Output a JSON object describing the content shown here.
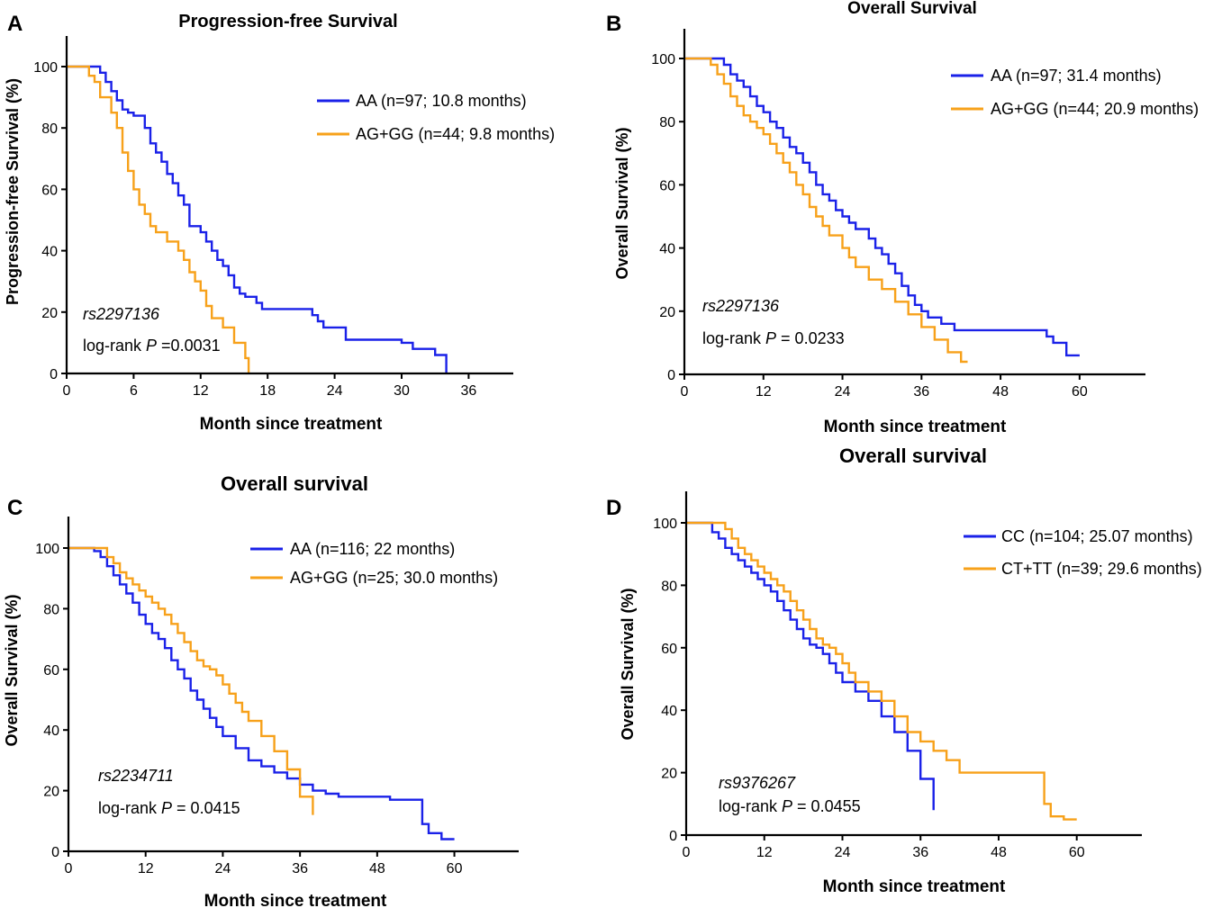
{
  "colors": {
    "blue": "#1a21e8",
    "orange": "#f7a11a"
  },
  "chart_data": [
    {
      "type": "line",
      "panel": "A",
      "title": "Progression-free Survival",
      "xlabel": "Month since treatment",
      "ylabel": "Progression-free Survival (%)",
      "xlim": [
        0,
        40
      ],
      "ylim": [
        0,
        100
      ],
      "xticks": [
        0,
        6,
        12,
        18,
        24,
        30,
        36
      ],
      "yticks": [
        0,
        20,
        40,
        60,
        80,
        100
      ],
      "snp": "rs2297136",
      "stat_prefix": "log-rank ",
      "stat_p": "P",
      "stat_value": " =0.0031",
      "series": [
        {
          "name": "AA (n=97; 10.8 months)",
          "color": "blue",
          "x": [
            0,
            3,
            3.5,
            4,
            4.5,
            5,
            5.5,
            6,
            7,
            7.5,
            8,
            8.5,
            9,
            9.5,
            10,
            10.5,
            11,
            12,
            12.5,
            13,
            13.5,
            14,
            14.5,
            15,
            15.5,
            16,
            17,
            17.5,
            22,
            22.5,
            23,
            25,
            30,
            31,
            33,
            34
          ],
          "y": [
            100,
            98,
            95,
            92,
            89,
            86,
            85,
            84,
            80,
            75,
            72,
            69,
            65,
            62,
            58,
            55,
            48,
            46,
            43,
            40,
            37,
            35,
            32,
            28,
            26,
            25,
            23,
            21,
            19,
            17,
            15,
            11,
            10,
            8,
            6,
            0
          ]
        },
        {
          "name": "AG+GG (n=44; 9.8 months)",
          "color": "orange",
          "x": [
            0,
            2,
            2.5,
            3,
            4,
            4.5,
            5,
            5.5,
            6,
            6.5,
            7,
            7.5,
            8,
            9,
            10,
            10.5,
            11,
            11.5,
            12,
            12.5,
            13,
            14,
            15,
            16,
            16.3
          ],
          "y": [
            100,
            97,
            95,
            90,
            85,
            80,
            72,
            66,
            60,
            55,
            52,
            48,
            46,
            43,
            40,
            37,
            33,
            30,
            27,
            22,
            18,
            15,
            10,
            5,
            0
          ]
        }
      ]
    },
    {
      "type": "line",
      "panel": "B",
      "title": "Overall Survival",
      "xlabel": "Month since treatment",
      "ylabel": "Overall Survival (%)",
      "xlim": [
        0,
        70
      ],
      "ylim": [
        0,
        100
      ],
      "xticks": [
        0,
        12,
        24,
        36,
        48,
        60
      ],
      "yticks": [
        0,
        20,
        40,
        60,
        80,
        100
      ],
      "snp": "rs2297136",
      "stat_prefix": "log-rank ",
      "stat_p": "P",
      "stat_value": " = 0.0233",
      "series": [
        {
          "name": "AA (n=97; 31.4 months)",
          "color": "blue",
          "x": [
            0,
            6,
            7,
            8,
            9,
            10,
            11,
            12,
            13,
            14,
            15,
            16,
            17,
            18,
            19,
            20,
            21,
            22,
            23,
            24,
            25,
            26,
            28,
            29,
            30,
            31,
            32,
            33,
            34,
            35,
            36,
            37,
            39,
            41,
            55,
            56,
            58,
            60
          ],
          "y": [
            100,
            98,
            95,
            93,
            91,
            88,
            85,
            83,
            80,
            78,
            75,
            72,
            70,
            67,
            64,
            60,
            57,
            55,
            52,
            50,
            48,
            46,
            43,
            40,
            38,
            35,
            32,
            28,
            25,
            22,
            20,
            18,
            16,
            14,
            12,
            10,
            6,
            6
          ]
        },
        {
          "name": "AG+GG (n=44; 20.9 months)",
          "color": "orange",
          "x": [
            0,
            4,
            5,
            6,
            7,
            8,
            9,
            10,
            11,
            12,
            13,
            14,
            15,
            16,
            17,
            18,
            19,
            20,
            21,
            22,
            24,
            25,
            26,
            28,
            30,
            32,
            34,
            36,
            38,
            40,
            42,
            43
          ],
          "y": [
            100,
            98,
            95,
            92,
            88,
            85,
            82,
            80,
            78,
            76,
            73,
            70,
            67,
            64,
            60,
            57,
            53,
            50,
            47,
            44,
            40,
            37,
            34,
            30,
            27,
            23,
            19,
            15,
            11,
            7,
            4,
            4
          ]
        }
      ]
    },
    {
      "type": "line",
      "panel": "C",
      "title": "Overall survival",
      "xlabel": "Month since treatment",
      "ylabel": "Overall Survival (%)",
      "xlim": [
        0,
        70
      ],
      "ylim": [
        0,
        100
      ],
      "xticks": [
        0,
        12,
        24,
        36,
        48,
        60
      ],
      "yticks": [
        0,
        20,
        40,
        60,
        80,
        100
      ],
      "snp": "rs2234711",
      "stat_prefix": "log-rank ",
      "stat_p": "P",
      "stat_value": " = 0.0415",
      "series": [
        {
          "name": "AA (n=116; 22 months)",
          "color": "blue",
          "x": [
            0,
            4,
            5,
            6,
            7,
            8,
            9,
            10,
            11,
            12,
            13,
            14,
            15,
            16,
            17,
            18,
            19,
            20,
            21,
            22,
            23,
            24,
            26,
            28,
            30,
            32,
            34,
            36,
            38,
            40,
            42,
            44,
            46,
            48,
            50,
            52,
            54,
            55,
            56,
            58,
            60
          ],
          "y": [
            100,
            99,
            97,
            94,
            91,
            88,
            85,
            82,
            78,
            75,
            72,
            70,
            67,
            63,
            60,
            57,
            53,
            50,
            47,
            44,
            41,
            38,
            34,
            30,
            28,
            26,
            24,
            22,
            20,
            19,
            18,
            18,
            18,
            18,
            17,
            17,
            17,
            9,
            6,
            4,
            4
          ]
        },
        {
          "name": "AG+GG (n=25; 30.0 months)",
          "color": "orange",
          "x": [
            0,
            6,
            7,
            8,
            9,
            10,
            11,
            12,
            13,
            14,
            15,
            16,
            17,
            18,
            19,
            20,
            21,
            22,
            23,
            24,
            25,
            26,
            27,
            28,
            30,
            32,
            34,
            36,
            38
          ],
          "y": [
            100,
            97,
            95,
            92,
            90,
            88,
            86,
            84,
            82,
            80,
            78,
            75,
            72,
            69,
            66,
            63,
            61,
            60,
            58,
            55,
            52,
            49,
            46,
            43,
            38,
            33,
            27,
            18,
            12
          ]
        }
      ]
    },
    {
      "type": "line",
      "panel": "D",
      "title": "Overall survival",
      "xlabel": "Month since treatment",
      "ylabel": "Overall Survival (%)",
      "xlim": [
        0,
        70
      ],
      "ylim": [
        0,
        100
      ],
      "xticks": [
        0,
        12,
        24,
        36,
        48,
        60
      ],
      "yticks": [
        0,
        20,
        40,
        60,
        80,
        100
      ],
      "snp": "rs9376267",
      "stat_prefix": "log-rank ",
      "stat_p": "P",
      "stat_value": " = 0.0455",
      "series": [
        {
          "name": "CC (n=104; 25.07 months)",
          "color": "blue",
          "x": [
            0,
            4,
            5,
            6,
            7,
            8,
            9,
            10,
            11,
            12,
            13,
            14,
            15,
            16,
            17,
            18,
            19,
            20,
            21,
            22,
            23,
            24,
            26,
            28,
            30,
            32,
            34,
            36,
            38
          ],
          "y": [
            100,
            97,
            95,
            92,
            90,
            88,
            86,
            84,
            82,
            80,
            78,
            75,
            72,
            69,
            66,
            63,
            61,
            60,
            58,
            55,
            52,
            49,
            46,
            43,
            38,
            33,
            27,
            18,
            8
          ]
        },
        {
          "name": "CT+TT (n=39; 29.6 months)",
          "color": "orange",
          "x": [
            0,
            6,
            7,
            8,
            9,
            10,
            11,
            12,
            13,
            14,
            15,
            16,
            17,
            18,
            19,
            20,
            21,
            22,
            23,
            24,
            25,
            26,
            28,
            30,
            32,
            34,
            36,
            38,
            40,
            42,
            44,
            46,
            48,
            50,
            52,
            54,
            55,
            56,
            58,
            60
          ],
          "y": [
            100,
            98,
            95,
            92,
            90,
            88,
            86,
            84,
            82,
            80,
            78,
            75,
            72,
            69,
            66,
            63,
            61,
            60,
            58,
            55,
            52,
            49,
            46,
            43,
            38,
            33,
            30,
            27,
            24,
            20,
            20,
            20,
            20,
            20,
            20,
            20,
            10,
            6,
            5,
            5
          ]
        }
      ]
    }
  ]
}
